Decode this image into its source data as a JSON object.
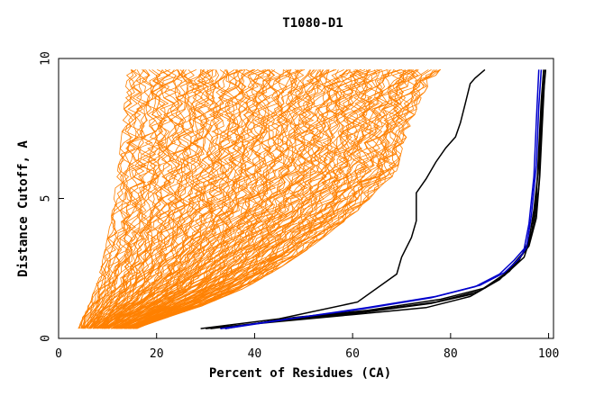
{
  "chart_data": {
    "type": "line",
    "title": "T1080-D1",
    "xlabel": "Percent of Residues (CA)",
    "ylabel": "Distance Cutoff, A",
    "xlim": [
      0,
      101
    ],
    "ylim": [
      0,
      10
    ],
    "xticks": [
      "0",
      "20",
      "40",
      "60",
      "80",
      "100"
    ],
    "yticks": [
      "0",
      "5",
      "10"
    ],
    "grid": false,
    "colors": {
      "orange_group": "#ff8000",
      "black_group": "#000000",
      "highlight": "#0000cc"
    },
    "orange_envelope": {
      "note_values": "family of ~150 orange curves between these bounds",
      "count": 150,
      "left_bound": {
        "x": [
          4,
          5,
          6,
          7,
          8,
          9,
          10,
          11,
          12,
          13,
          14
        ],
        "y": [
          0.35,
          0.8,
          1.2,
          1.6,
          2.1,
          2.8,
          3.6,
          4.6,
          5.9,
          7.5,
          9.6
        ]
      },
      "right_bound": {
        "x": [
          16,
          23,
          30,
          38,
          45,
          51,
          57,
          62,
          66,
          69,
          70,
          72,
          74,
          76,
          78
        ],
        "y": [
          0.35,
          0.8,
          1.2,
          1.8,
          2.5,
          3.2,
          4.0,
          4.7,
          5.5,
          5.9,
          6.7,
          7.7,
          8.6,
          9.2,
          9.6
        ]
      }
    },
    "series": [
      {
        "color": "black",
        "x": [
          29,
          45,
          61,
          69,
          70,
          72,
          73,
          73,
          75,
          77,
          79,
          81,
          82,
          83,
          84,
          85,
          87
        ],
        "y": [
          0.35,
          0.7,
          1.3,
          2.3,
          2.9,
          3.6,
          4.2,
          5.2,
          5.7,
          6.3,
          6.8,
          7.2,
          7.7,
          8.4,
          9.1,
          9.3,
          9.6
        ]
      },
      {
        "color": "black",
        "x": [
          30,
          45,
          60,
          75,
          84,
          90,
          94,
          96,
          97,
          98,
          98.5,
          99
        ],
        "y": [
          0.35,
          0.6,
          0.85,
          1.1,
          1.5,
          2.1,
          2.8,
          3.5,
          4.6,
          6.2,
          8.0,
          9.6
        ]
      },
      {
        "color": "black",
        "x": [
          31,
          46,
          61,
          76,
          85,
          91,
          95,
          96.5,
          97.5,
          98,
          98.5,
          99
        ],
        "y": [
          0.35,
          0.65,
          0.9,
          1.25,
          1.6,
          2.25,
          2.9,
          3.7,
          5.0,
          6.8,
          8.5,
          9.6
        ]
      },
      {
        "color": "black",
        "x": [
          33,
          47,
          62,
          77,
          86,
          91,
          95,
          97,
          98,
          98.5,
          99,
          99.3
        ],
        "y": [
          0.35,
          0.7,
          0.95,
          1.3,
          1.7,
          2.3,
          3.1,
          4.0,
          5.4,
          7.3,
          8.8,
          9.6
        ]
      },
      {
        "color": "black",
        "x": [
          34,
          48,
          63,
          78,
          87,
          92,
          96,
          97.5,
          98.2,
          98.7,
          99.1,
          99.4
        ],
        "y": [
          0.35,
          0.75,
          1.0,
          1.4,
          1.8,
          2.4,
          3.3,
          4.3,
          5.8,
          7.6,
          9.0,
          9.6
        ]
      },
      {
        "color": "blue",
        "x": [
          33,
          47,
          62,
          76,
          85,
          90,
          93,
          95,
          96,
          97,
          97.5,
          98
        ],
        "y": [
          0.35,
          0.7,
          1.05,
          1.45,
          1.85,
          2.3,
          2.8,
          3.2,
          4.1,
          5.8,
          7.8,
          9.6
        ]
      },
      {
        "color": "blue",
        "x": [
          34,
          48,
          63,
          77,
          86,
          91,
          94,
          95.5,
          96.5,
          97.5,
          98,
          98.5
        ],
        "y": [
          0.35,
          0.72,
          1.1,
          1.5,
          1.9,
          2.35,
          2.85,
          3.25,
          4.4,
          6.2,
          8.3,
          9.6
        ]
      }
    ]
  }
}
